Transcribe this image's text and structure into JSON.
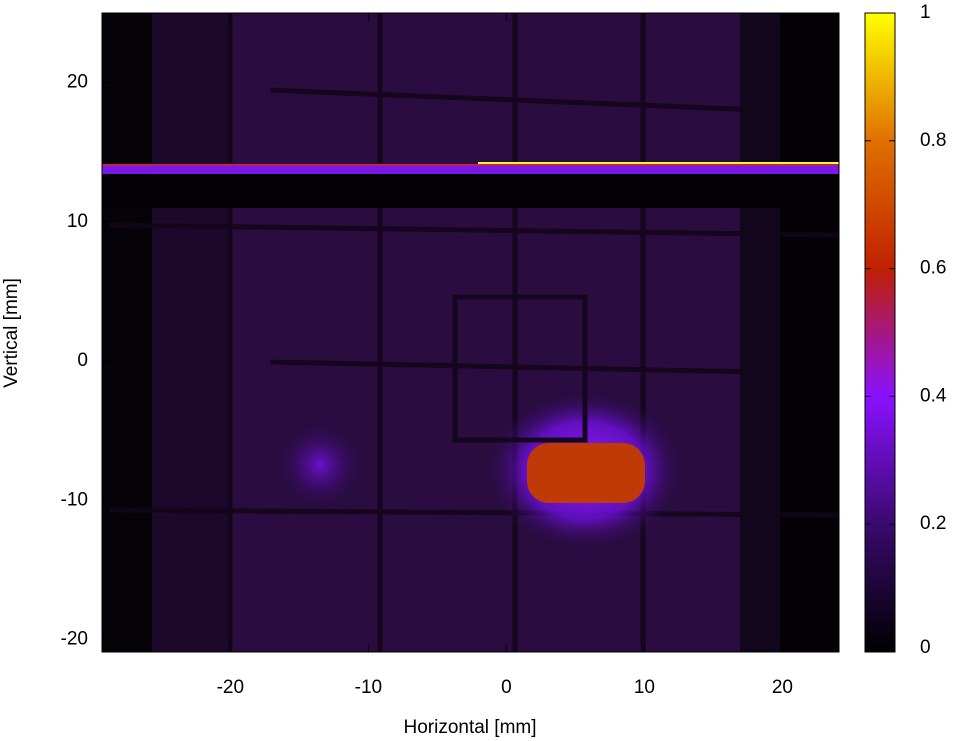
{
  "chart_data": {
    "type": "heatmap",
    "x_label": "Horizontal [mm]",
    "y_label": "Vertical [mm]",
    "xlim": [
      -29.3,
      24.1
    ],
    "xticks": [
      -20,
      -10,
      0,
      10,
      20
    ],
    "ylim": [
      -20.9,
      25
    ],
    "yticks": [
      -20,
      -10,
      0,
      10,
      20
    ],
    "colorbar": {
      "lim": [
        0,
        1
      ],
      "ticks": [
        0,
        0.2,
        0.4,
        0.6,
        0.8,
        1
      ],
      "colors": [
        "#000000",
        "#3a0a6e",
        "#8a10ff",
        "#c02000",
        "#e07000",
        "#ffff00"
      ]
    }
  }
}
